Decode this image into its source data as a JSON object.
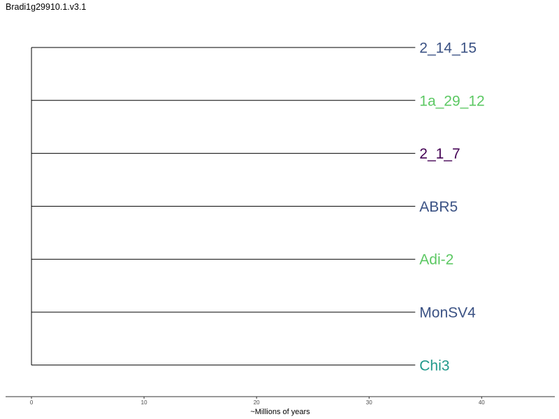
{
  "title": "Bradi1g29910.1.v3.1",
  "chart_data": {
    "type": "dendrogram",
    "title": "Bradi1g29910.1.v3.1",
    "xlabel": "~Millions of years",
    "ylabel": "",
    "xlim": [
      -2.3,
      46.5
    ],
    "xticks": [
      0,
      10,
      20,
      30,
      40
    ],
    "grid": false,
    "root_x": 0,
    "tips": [
      {
        "label": "2_14_15",
        "x": 34.1,
        "color": "#3b5284"
      },
      {
        "label": "1a_29_12",
        "x": 34.1,
        "color": "#5cc863"
      },
      {
        "label": "2_1_7",
        "x": 34.1,
        "color": "#440154"
      },
      {
        "label": "ABR5",
        "x": 34.1,
        "color": "#3b5284"
      },
      {
        "label": "Adi-2",
        "x": 34.1,
        "color": "#5cc863"
      },
      {
        "label": "MonSV4",
        "x": 34.1,
        "color": "#3b5284"
      },
      {
        "label": "Chi3",
        "x": 34.1,
        "color": "#21998b"
      }
    ]
  }
}
